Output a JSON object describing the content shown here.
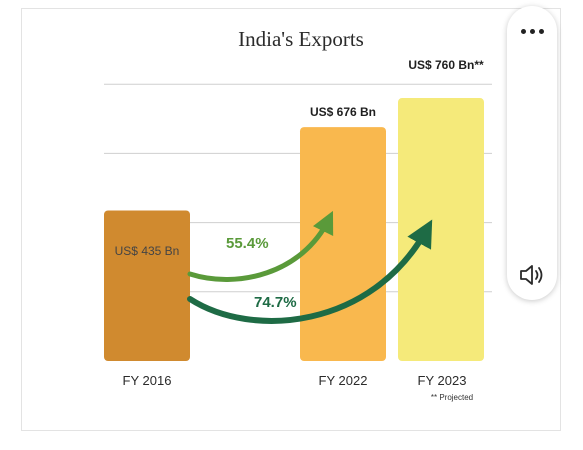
{
  "chart_data": {
    "type": "bar",
    "title": "India's Exports",
    "categories": [
      "FY 2016",
      "FY 2022",
      "FY 2023"
    ],
    "values": [
      435,
      676,
      760
    ],
    "value_labels": [
      "US$ 435 Bn",
      "US$ 676 Bn",
      "US$ 760 Bn**"
    ],
    "bar_colors": [
      "#d08a2f",
      "#f9b84e",
      "#f5ea7a"
    ],
    "grid": true,
    "ylim": [
      0,
      800
    ],
    "growth_annotations": [
      {
        "label": "55.4%",
        "from": "FY 2016",
        "to": "FY 2022",
        "color": "#5a9a3a"
      },
      {
        "label": "74.7%",
        "from": "FY 2016",
        "to": "FY 2023",
        "color": "#1e6b45"
      }
    ],
    "footnote": "** Projected"
  },
  "controls": {
    "more_icon": "more-horizontal-icon",
    "speaker_icon": "speaker-icon"
  }
}
